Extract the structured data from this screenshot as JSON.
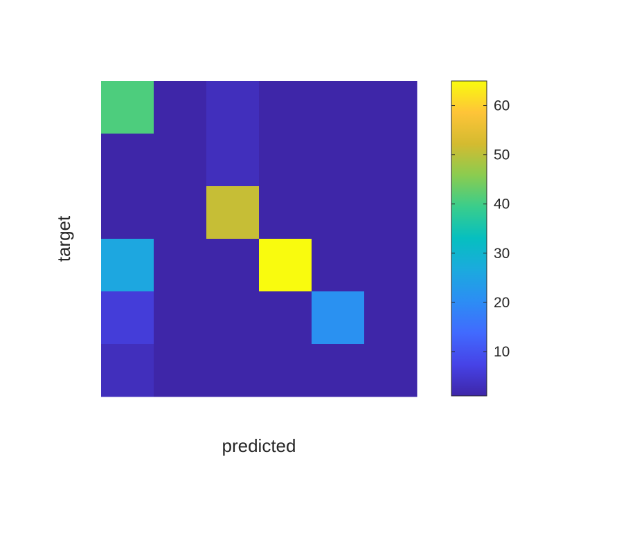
{
  "chart_data": {
    "type": "heatmap",
    "title": "",
    "xlabel": "predicted",
    "ylabel": "target",
    "rows": 6,
    "cols": 6,
    "values": [
      [
        41,
        1,
        3,
        1,
        1,
        1
      ],
      [
        1,
        1,
        3,
        1,
        1,
        1
      ],
      [
        1,
        1,
        51,
        1,
        1,
        1
      ],
      [
        26,
        1,
        1,
        65,
        1,
        1
      ],
      [
        6,
        1,
        1,
        1,
        21,
        1
      ],
      [
        3,
        1,
        1,
        1,
        1,
        1
      ]
    ],
    "colorbar": {
      "min": 1,
      "max": 65,
      "ticks": [
        10,
        20,
        30,
        40,
        50,
        60
      ],
      "tick_labels": [
        "10",
        "20",
        "30",
        "40",
        "50",
        "60"
      ]
    },
    "colormap": "parula",
    "grid": false,
    "show_axis_ticks": false
  }
}
